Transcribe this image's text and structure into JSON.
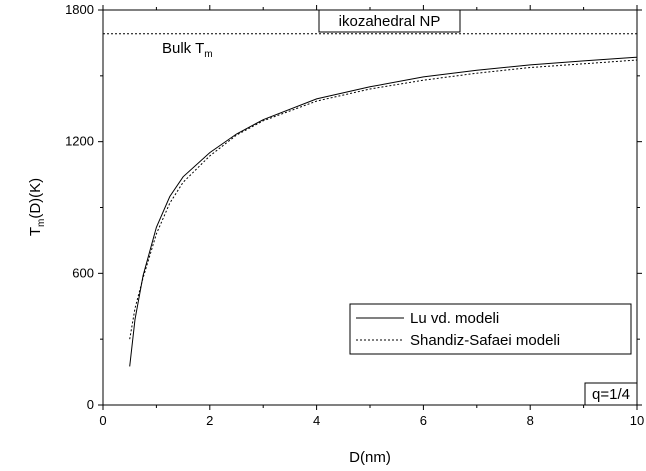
{
  "chart_data": {
    "type": "line",
    "title": "ikozahedral NP",
    "xlabel": "D(nm)",
    "ylabel": {
      "base": "T",
      "sub": "m",
      "rest": "(D)(K)"
    },
    "xlim": [
      0,
      10
    ],
    "ylim": [
      0,
      1800
    ],
    "x_ticks": [
      0,
      2,
      4,
      6,
      8,
      10
    ],
    "y_ticks": [
      0,
      600,
      1200,
      1800
    ],
    "grid": false,
    "legend_position": "bottom-right",
    "reference_line": {
      "label_base": "Bulk T",
      "label_sub": "m",
      "value": 1692
    },
    "annotation": "q=1/4",
    "series": [
      {
        "name": "Lu vd. modeli",
        "style": "solid",
        "x": [
          0.5,
          0.6,
          0.75,
          1.0,
          1.25,
          1.5,
          2.0,
          2.5,
          3.0,
          4.0,
          5.0,
          6.0,
          7.0,
          8.0,
          9.0,
          10.0
        ],
        "y": [
          176,
          390,
          590,
          810,
          950,
          1040,
          1150,
          1235,
          1300,
          1395,
          1450,
          1495,
          1525,
          1550,
          1568,
          1585
        ]
      },
      {
        "name": "Shandiz-Safaei modeli",
        "style": "dashed",
        "x": [
          0.5,
          0.6,
          0.75,
          1.0,
          1.25,
          1.5,
          2.0,
          2.5,
          3.0,
          4.0,
          5.0,
          6.0,
          7.0,
          8.0,
          9.0,
          10.0
        ],
        "y": [
          300,
          440,
          580,
          780,
          920,
          1015,
          1135,
          1230,
          1295,
          1385,
          1440,
          1480,
          1512,
          1538,
          1555,
          1572
        ]
      }
    ]
  }
}
